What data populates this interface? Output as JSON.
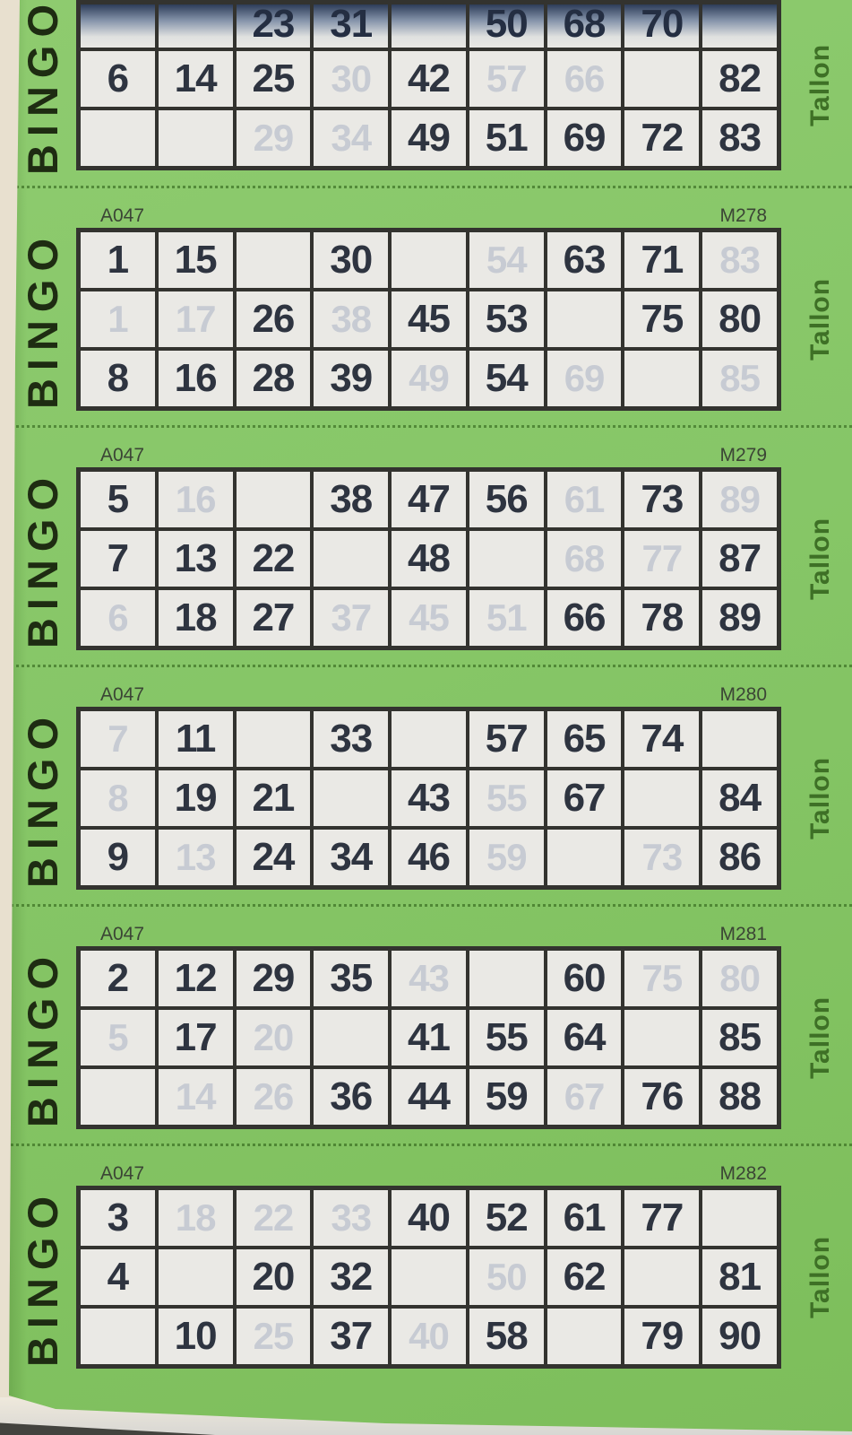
{
  "page": {
    "side_label": "BINGO",
    "brand": "Tallon",
    "colors": {
      "green": "#86c667",
      "paper_edge": "#e8e0cf",
      "cell_bg": "#eae9e5",
      "grid_line": "#33332f",
      "number": "#2e3440",
      "ghost": "#c7cbd3",
      "bingo_text": "#1e2c12",
      "brand_text": "#3e7026",
      "serial_text": "#3b4535"
    }
  },
  "tickets": [
    {
      "cut": true,
      "serial_left": "",
      "serial_right": "",
      "rows": [
        [
          {
            "v": ""
          },
          {
            "v": ""
          },
          {
            "v": "23"
          },
          {
            "v": "31"
          },
          {
            "v": ""
          },
          {
            "v": "50"
          },
          {
            "v": "68"
          },
          {
            "v": "70"
          },
          {
            "v": ""
          }
        ],
        [
          {
            "v": "6"
          },
          {
            "v": "14"
          },
          {
            "v": "25"
          },
          {
            "v": "30",
            "ghost": true
          },
          {
            "v": "42"
          },
          {
            "v": "57",
            "ghost": true
          },
          {
            "v": "66",
            "ghost": true
          },
          {
            "v": ""
          },
          {
            "v": "82"
          }
        ],
        [
          {
            "v": ""
          },
          {
            "v": ""
          },
          {
            "v": "29",
            "ghost": true
          },
          {
            "v": "34",
            "ghost": true
          },
          {
            "v": "49"
          },
          {
            "v": "51"
          },
          {
            "v": "69"
          },
          {
            "v": "72"
          },
          {
            "v": "83"
          }
        ]
      ]
    },
    {
      "cut": false,
      "serial_left": "A047",
      "serial_right": "M278",
      "rows": [
        [
          {
            "v": "1"
          },
          {
            "v": "15"
          },
          {
            "v": ""
          },
          {
            "v": "30"
          },
          {
            "v": ""
          },
          {
            "v": "54",
            "ghost": true
          },
          {
            "v": "63"
          },
          {
            "v": "71"
          },
          {
            "v": "83",
            "ghost": true
          }
        ],
        [
          {
            "v": "1",
            "ghost": true
          },
          {
            "v": "17",
            "ghost": true
          },
          {
            "v": "26"
          },
          {
            "v": "38",
            "ghost": true
          },
          {
            "v": "45"
          },
          {
            "v": "53"
          },
          {
            "v": ""
          },
          {
            "v": "75"
          },
          {
            "v": "80"
          }
        ],
        [
          {
            "v": "8"
          },
          {
            "v": "16"
          },
          {
            "v": "28"
          },
          {
            "v": "39"
          },
          {
            "v": "49",
            "ghost": true
          },
          {
            "v": "54"
          },
          {
            "v": "69",
            "ghost": true
          },
          {
            "v": ""
          },
          {
            "v": "85",
            "ghost": true
          }
        ]
      ]
    },
    {
      "cut": false,
      "serial_left": "A047",
      "serial_right": "M279",
      "rows": [
        [
          {
            "v": "5"
          },
          {
            "v": "16",
            "ghost": true
          },
          {
            "v": ""
          },
          {
            "v": "38"
          },
          {
            "v": "47"
          },
          {
            "v": "56"
          },
          {
            "v": "61",
            "ghost": true
          },
          {
            "v": "73"
          },
          {
            "v": "89",
            "ghost": true
          }
        ],
        [
          {
            "v": "7"
          },
          {
            "v": "13"
          },
          {
            "v": "22"
          },
          {
            "v": ""
          },
          {
            "v": "48"
          },
          {
            "v": ""
          },
          {
            "v": "68",
            "ghost": true
          },
          {
            "v": "77",
            "ghost": true
          },
          {
            "v": "87"
          }
        ],
        [
          {
            "v": "6",
            "ghost": true
          },
          {
            "v": "18"
          },
          {
            "v": "27"
          },
          {
            "v": "37",
            "ghost": true
          },
          {
            "v": "45",
            "ghost": true
          },
          {
            "v": "51",
            "ghost": true
          },
          {
            "v": "66"
          },
          {
            "v": "78"
          },
          {
            "v": "89"
          }
        ]
      ]
    },
    {
      "cut": false,
      "serial_left": "A047",
      "serial_right": "M280",
      "rows": [
        [
          {
            "v": "7",
            "ghost": true
          },
          {
            "v": "11"
          },
          {
            "v": ""
          },
          {
            "v": "33"
          },
          {
            "v": ""
          },
          {
            "v": "57"
          },
          {
            "v": "65"
          },
          {
            "v": "74"
          },
          {
            "v": ""
          }
        ],
        [
          {
            "v": "8",
            "ghost": true
          },
          {
            "v": "19"
          },
          {
            "v": "21"
          },
          {
            "v": ""
          },
          {
            "v": "43"
          },
          {
            "v": "55",
            "ghost": true
          },
          {
            "v": "67"
          },
          {
            "v": ""
          },
          {
            "v": "84"
          }
        ],
        [
          {
            "v": "9"
          },
          {
            "v": "13",
            "ghost": true
          },
          {
            "v": "24"
          },
          {
            "v": "34"
          },
          {
            "v": "46"
          },
          {
            "v": "59",
            "ghost": true
          },
          {
            "v": ""
          },
          {
            "v": "73",
            "ghost": true
          },
          {
            "v": "86"
          }
        ]
      ]
    },
    {
      "cut": false,
      "serial_left": "A047",
      "serial_right": "M281",
      "rows": [
        [
          {
            "v": "2"
          },
          {
            "v": "12"
          },
          {
            "v": "29"
          },
          {
            "v": "35"
          },
          {
            "v": "43",
            "ghost": true
          },
          {
            "v": ""
          },
          {
            "v": "60"
          },
          {
            "v": "75",
            "ghost": true
          },
          {
            "v": "80",
            "ghost": true
          }
        ],
        [
          {
            "v": "5",
            "ghost": true
          },
          {
            "v": "17"
          },
          {
            "v": "20",
            "ghost": true
          },
          {
            "v": ""
          },
          {
            "v": "41"
          },
          {
            "v": "55"
          },
          {
            "v": "64"
          },
          {
            "v": ""
          },
          {
            "v": "85"
          }
        ],
        [
          {
            "v": ""
          },
          {
            "v": "14",
            "ghost": true
          },
          {
            "v": "26",
            "ghost": true
          },
          {
            "v": "36"
          },
          {
            "v": "44"
          },
          {
            "v": "59"
          },
          {
            "v": "67",
            "ghost": true
          },
          {
            "v": "76"
          },
          {
            "v": "88"
          }
        ]
      ]
    },
    {
      "cut": false,
      "serial_left": "A047",
      "serial_right": "M282",
      "rows": [
        [
          {
            "v": "3"
          },
          {
            "v": "18",
            "ghost": true
          },
          {
            "v": "22",
            "ghost": true
          },
          {
            "v": "33",
            "ghost": true
          },
          {
            "v": "40"
          },
          {
            "v": "52"
          },
          {
            "v": "61"
          },
          {
            "v": "77"
          },
          {
            "v": ""
          }
        ],
        [
          {
            "v": "4"
          },
          {
            "v": ""
          },
          {
            "v": "20"
          },
          {
            "v": "32"
          },
          {
            "v": ""
          },
          {
            "v": "50",
            "ghost": true
          },
          {
            "v": "62"
          },
          {
            "v": ""
          },
          {
            "v": "81"
          }
        ],
        [
          {
            "v": ""
          },
          {
            "v": "10"
          },
          {
            "v": "25",
            "ghost": true
          },
          {
            "v": "37"
          },
          {
            "v": "40",
            "ghost": true
          },
          {
            "v": "58"
          },
          {
            "v": ""
          },
          {
            "v": "79"
          },
          {
            "v": "90"
          }
        ]
      ]
    }
  ]
}
